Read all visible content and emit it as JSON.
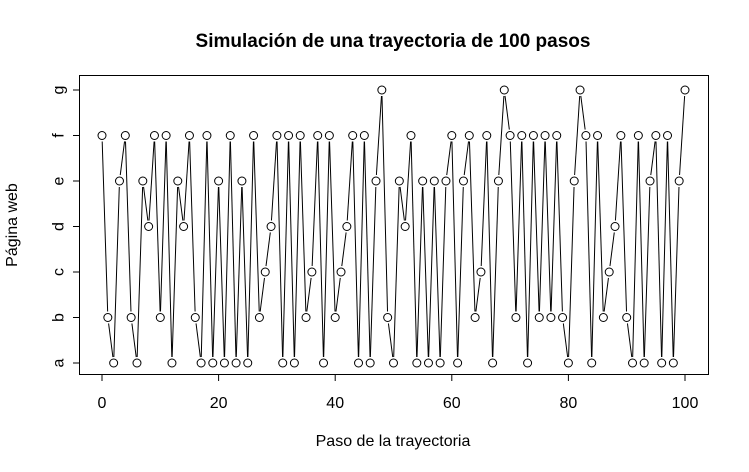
{
  "chart_data": {
    "type": "line",
    "title": "Simulación de una trayectoria de 100 pasos",
    "xlabel": "Paso de la trayectoria",
    "ylabel": "Página web",
    "xlim": [
      0,
      100
    ],
    "x_ticks": [
      0,
      20,
      40,
      60,
      80,
      100
    ],
    "y_categories": [
      "a",
      "b",
      "c",
      "d",
      "e",
      "f",
      "g"
    ],
    "marker": "open-circle",
    "line_style": "segments-between-points",
    "x": [
      0,
      1,
      2,
      3,
      4,
      5,
      6,
      7,
      8,
      9,
      10,
      11,
      12,
      13,
      14,
      15,
      16,
      17,
      18,
      19,
      20,
      21,
      22,
      23,
      24,
      25,
      26,
      27,
      28,
      29,
      30,
      31,
      32,
      33,
      34,
      35,
      36,
      37,
      38,
      39,
      40,
      41,
      42,
      43,
      44,
      45,
      46,
      47,
      48,
      49,
      50,
      51,
      52,
      53,
      54,
      55,
      56,
      57,
      58,
      59,
      60,
      61,
      62,
      63,
      64,
      65,
      66,
      67,
      68,
      69,
      70,
      71,
      72,
      73,
      74,
      75,
      76,
      77,
      78,
      79,
      80,
      81,
      82,
      83,
      84,
      85,
      86,
      87,
      88,
      89,
      90,
      91,
      92,
      93,
      94,
      95,
      96,
      97,
      98,
      99,
      100
    ],
    "values": [
      "f",
      "b",
      "a",
      "e",
      "f",
      "b",
      "a",
      "e",
      "d",
      "f",
      "b",
      "f",
      "a",
      "e",
      "d",
      "f",
      "b",
      "a",
      "f",
      "a",
      "e",
      "a",
      "f",
      "a",
      "e",
      "a",
      "f",
      "b",
      "c",
      "d",
      "f",
      "a",
      "f",
      "a",
      "f",
      "b",
      "c",
      "f",
      "a",
      "f",
      "b",
      "c",
      "d",
      "f",
      "a",
      "f",
      "a",
      "e",
      "g",
      "b",
      "a",
      "e",
      "d",
      "f",
      "a",
      "e",
      "a",
      "e",
      "a",
      "e",
      "f",
      "a",
      "e",
      "f",
      "b",
      "c",
      "f",
      "a",
      "e",
      "g",
      "f",
      "b",
      "f",
      "a",
      "f",
      "b",
      "f",
      "b",
      "f",
      "b",
      "a",
      "e",
      "g",
      "f",
      "a",
      "f",
      "b",
      "c",
      "d",
      "f",
      "b",
      "a",
      "f",
      "a",
      "e",
      "f",
      "a",
      "f",
      "a",
      "e",
      "g"
    ]
  }
}
